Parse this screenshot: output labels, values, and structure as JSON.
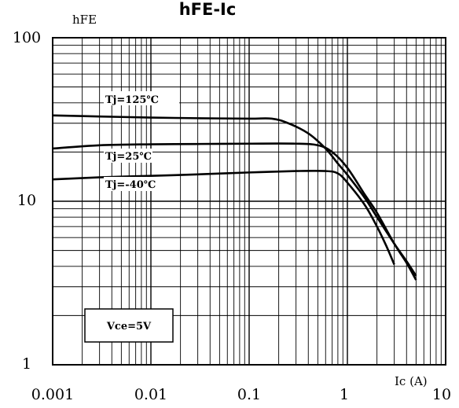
{
  "chart_data": {
    "type": "line",
    "title": "hFE-Ic",
    "ylabel": "hFE",
    "xlabel": "Ic (A)",
    "x_scale": "log",
    "y_scale": "log",
    "xlim": [
      0.001,
      10
    ],
    "ylim": [
      1,
      100
    ],
    "grid": true,
    "x_tick_labels": [
      "0.001",
      "0.01",
      "0.1",
      "1",
      "10"
    ],
    "y_tick_labels": [
      "1",
      "10",
      "100"
    ],
    "annotation": "Vce=5V",
    "series": [
      {
        "name": "Tj=125℃",
        "x": [
          0.001,
          0.003,
          0.01,
          0.03,
          0.1,
          0.17,
          0.25,
          0.4,
          0.6,
          0.8,
          1.0,
          1.5,
          2.0,
          3.0,
          4.0,
          5.0
        ],
        "y": [
          33.5,
          33.0,
          32.5,
          32.2,
          32.0,
          32.0,
          30.0,
          26.0,
          21.0,
          17.0,
          14.5,
          10.5,
          8.0,
          5.5,
          4.3,
          3.5
        ]
      },
      {
        "name": "Tj=25℃",
        "x": [
          0.001,
          0.003,
          0.01,
          0.03,
          0.1,
          0.3,
          0.5,
          0.7,
          1.0,
          1.5,
          2.0,
          3.0,
          4.0,
          5.0
        ],
        "y": [
          21.0,
          22.0,
          22.3,
          22.4,
          22.5,
          22.5,
          22.0,
          20.0,
          16.0,
          11.0,
          8.5,
          5.5,
          4.2,
          3.3
        ]
      },
      {
        "name": "Tj=-40℃",
        "x": [
          0.001,
          0.003,
          0.01,
          0.03,
          0.1,
          0.3,
          0.6,
          0.8,
          1.0,
          1.5,
          2.0,
          2.5,
          3.0
        ],
        "y": [
          13.6,
          14.0,
          14.3,
          14.6,
          15.0,
          15.3,
          15.3,
          14.8,
          13.0,
          9.5,
          7.0,
          5.3,
          4.1
        ]
      }
    ]
  }
}
